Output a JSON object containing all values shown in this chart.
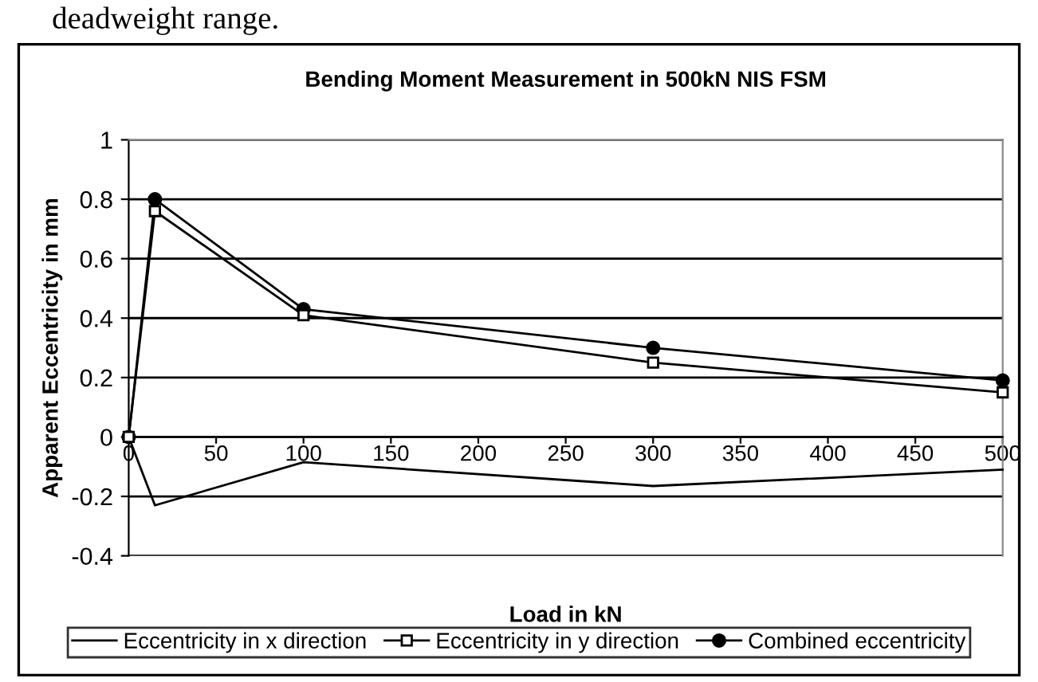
{
  "chart_data": {
    "type": "line",
    "title": "Bending Moment Measurement in 500kN NIS FSM",
    "xlabel": "Load in kN",
    "ylabel": "Apparent Eccentricity in mm",
    "annotations": [
      "deadweight range."
    ],
    "x": [
      0,
      15,
      100,
      300,
      500
    ],
    "series": [
      {
        "name": "Eccentricity in x direction",
        "color": "#000000",
        "marker": "none",
        "values": [
          0,
          -0.23,
          -0.085,
          -0.165,
          -0.11
        ]
      },
      {
        "name": "Eccentricity in y direction",
        "color": "#000000",
        "marker": "square",
        "values": [
          0,
          0.76,
          0.41,
          0.25,
          0.15
        ]
      },
      {
        "name": "Combined eccentricity",
        "color": "#000000",
        "marker": "circle",
        "values": [
          0,
          0.8,
          0.43,
          0.3,
          0.19
        ]
      }
    ],
    "xlim": [
      0,
      500
    ],
    "xticks": [
      0,
      50,
      100,
      150,
      200,
      250,
      300,
      350,
      400,
      450,
      500
    ],
    "ylim": [
      -0.4,
      1
    ],
    "yticks": [
      -0.4,
      -0.2,
      0,
      0.2,
      0.4,
      0.6,
      0.8,
      1
    ],
    "grid": "y",
    "legend": "bottom",
    "line_style": "solid"
  }
}
